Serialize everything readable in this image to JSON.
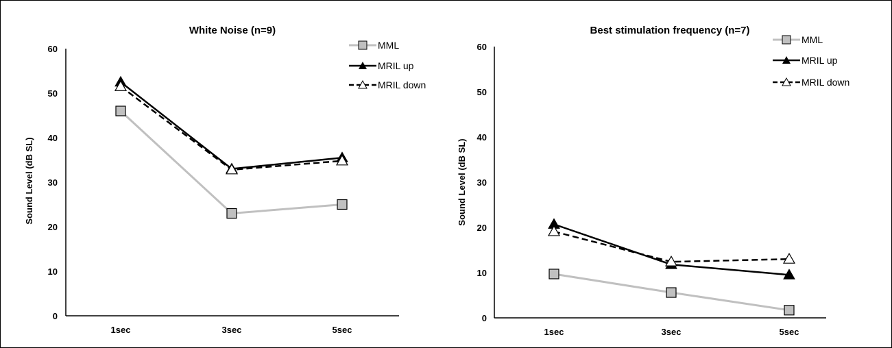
{
  "chart_data": [
    {
      "type": "line",
      "title": "White Noise (n=9)",
      "xlabel": "",
      "ylabel": "Sound Level (dB SL)",
      "categories": [
        "1sec",
        "3sec",
        "5sec"
      ],
      "ylim": [
        0,
        60
      ],
      "yticks": [
        "0",
        "10",
        "20",
        "30",
        "40",
        "50",
        "60"
      ],
      "grid": false,
      "legend_position": "top-right",
      "series": [
        {
          "name": "MML",
          "values": [
            46,
            23,
            25
          ],
          "color": "#c0c0c0",
          "marker": "square",
          "dash": "solid"
        },
        {
          "name": "MRIL up",
          "values": [
            52.5,
            33,
            35.5
          ],
          "color": "#000000",
          "marker": "triangle-filled",
          "dash": "solid"
        },
        {
          "name": "MRIL down",
          "values": [
            51.5,
            32.8,
            34.8
          ],
          "color": "#000000",
          "marker": "triangle-open",
          "dash": "dashed"
        }
      ]
    },
    {
      "type": "line",
      "title": "Best stimulation frequency (n=7)",
      "xlabel": "",
      "ylabel": "Sound Level (dB  SL)",
      "categories": [
        "1sec",
        "3sec",
        "5sec"
      ],
      "ylim": [
        0,
        60
      ],
      "yticks": [
        "0",
        "10",
        "20",
        "30",
        "40",
        "50",
        "60"
      ],
      "grid": false,
      "legend_position": "top-right",
      "series": [
        {
          "name": "MML",
          "values": [
            9.7,
            5.6,
            1.7
          ],
          "color": "#c0c0c0",
          "marker": "square",
          "dash": "solid"
        },
        {
          "name": "MRIL up",
          "values": [
            20.7,
            11.8,
            9.5
          ],
          "color": "#000000",
          "marker": "triangle-filled",
          "dash": "solid"
        },
        {
          "name": "MRIL down",
          "values": [
            19.1,
            12.4,
            13
          ],
          "color": "#000000",
          "marker": "triangle-open",
          "dash": "dashed"
        }
      ]
    }
  ]
}
